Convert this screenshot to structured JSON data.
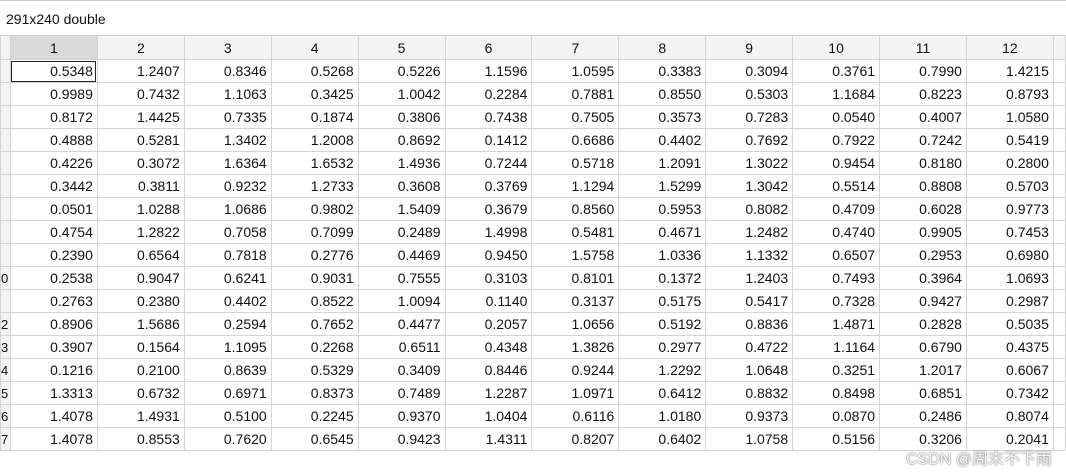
{
  "title": "291x240 double",
  "columns": [
    "1",
    "2",
    "3",
    "4",
    "5",
    "6",
    "7",
    "8",
    "9",
    "10",
    "11",
    "12"
  ],
  "rows": [
    {
      "cells": [
        "0.5348",
        "1.2407",
        "0.8346",
        "0.5268",
        "0.5226",
        "1.1596",
        "1.0595",
        "0.3383",
        "0.3094",
        "0.3761",
        "0.7990",
        "1.4215"
      ]
    },
    {
      "cells": [
        "0.9989",
        "0.7432",
        "1.1063",
        "0.3425",
        "1.0042",
        "0.2284",
        "0.7881",
        "0.8550",
        "0.5303",
        "1.1684",
        "0.8223",
        "0.8793"
      ]
    },
    {
      "cells": [
        "0.8172",
        "1.4425",
        "0.7335",
        "0.1874",
        "0.3806",
        "0.7438",
        "0.7505",
        "0.3573",
        "0.7283",
        "0.0540",
        "0.4007",
        "1.0580"
      ]
    },
    {
      "cells": [
        "0.4888",
        "0.5281",
        "1.3402",
        "1.2008",
        "0.8692",
        "0.1412",
        "0.6686",
        "0.4402",
        "0.7692",
        "0.7922",
        "0.7242",
        "0.5419"
      ]
    },
    {
      "cells": [
        "0.4226",
        "0.3072",
        "1.6364",
        "1.6532",
        "1.4936",
        "0.7244",
        "0.5718",
        "1.2091",
        "1.3022",
        "0.9454",
        "0.8180",
        "0.2800"
      ]
    },
    {
      "cells": [
        "0.3442",
        "0.3811",
        "0.9232",
        "1.2733",
        "0.3608",
        "0.3769",
        "1.1294",
        "1.5299",
        "1.3042",
        "0.5514",
        "0.8808",
        "0.5703"
      ]
    },
    {
      "cells": [
        "0.0501",
        "1.0288",
        "1.0686",
        "0.9802",
        "1.5409",
        "0.3679",
        "0.8560",
        "0.5953",
        "0.8082",
        "0.4709",
        "0.6028",
        "0.9773"
      ]
    },
    {
      "cells": [
        "0.4754",
        "1.2822",
        "0.7058",
        "0.7099",
        "0.2489",
        "1.4998",
        "0.5481",
        "0.4671",
        "1.2482",
        "0.4740",
        "0.9905",
        "0.7453"
      ]
    },
    {
      "cells": [
        "0.2390",
        "0.6564",
        "0.7818",
        "0.2776",
        "0.4469",
        "0.9450",
        "1.5758",
        "1.0336",
        "1.1332",
        "0.6507",
        "0.2953",
        "0.6980"
      ]
    },
    {
      "label": "0",
      "cells": [
        "0.2538",
        "0.9047",
        "0.6241",
        "0.9031",
        "0.7555",
        "0.3103",
        "0.8101",
        "0.1372",
        "1.2403",
        "0.7493",
        "0.3964",
        "1.0693"
      ]
    },
    {
      "cells": [
        "0.2763",
        "0.2380",
        "0.4402",
        "0.8522",
        "1.0094",
        "0.1140",
        "0.3137",
        "0.5175",
        "0.5417",
        "0.7328",
        "0.9427",
        "0.2987"
      ]
    },
    {
      "label": "2",
      "cells": [
        "0.8906",
        "1.5686",
        "0.2594",
        "0.7652",
        "0.4477",
        "0.2057",
        "1.0656",
        "0.5192",
        "0.8836",
        "1.4871",
        "0.2828",
        "0.5035"
      ]
    },
    {
      "label": "3",
      "cells": [
        "0.3907",
        "0.1564",
        "1.1095",
        "0.2268",
        "0.6511",
        "0.4348",
        "1.3826",
        "0.2977",
        "0.4722",
        "1.1164",
        "0.6790",
        "0.4375"
      ]
    },
    {
      "label": "4",
      "cells": [
        "0.1216",
        "0.2100",
        "0.8639",
        "0.5329",
        "0.3409",
        "0.8446",
        "0.9244",
        "1.2292",
        "1.0648",
        "0.3251",
        "1.2017",
        "0.6067"
      ]
    },
    {
      "label": "5",
      "cells": [
        "1.3313",
        "0.6732",
        "0.6971",
        "0.8373",
        "0.7489",
        "1.2287",
        "1.0971",
        "0.6412",
        "0.8832",
        "0.8498",
        "0.6851",
        "0.7342"
      ]
    },
    {
      "label": "6",
      "cells": [
        "1.4078",
        "1.4931",
        "0.5100",
        "0.2245",
        "0.9370",
        "1.0404",
        "0.6116",
        "1.0180",
        "0.9373",
        "0.0870",
        "0.2486",
        "0.8074"
      ]
    },
    {
      "label": "7",
      "cells": [
        "1.4078",
        "0.8553",
        "0.7620",
        "0.6545",
        "0.9423",
        "1.4311",
        "0.8207",
        "0.6402",
        "1.0758",
        "0.5156",
        "0.3206",
        "0.2041"
      ]
    }
  ],
  "watermark": "CSDN @周末不下雨"
}
